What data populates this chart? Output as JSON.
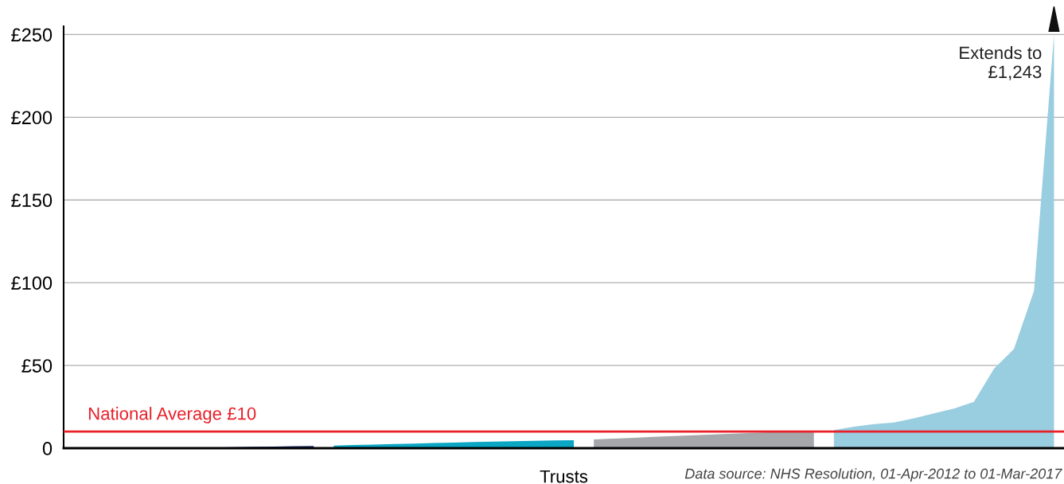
{
  "chart_data": {
    "type": "area",
    "xlabel": "Trusts",
    "categories": [
      null,
      null,
      null,
      null,
      null,
      null,
      null,
      null,
      null,
      null,
      null,
      null,
      null,
      null,
      null,
      null,
      null,
      null,
      null,
      null,
      null,
      null,
      null,
      null,
      null,
      null,
      null,
      null,
      null,
      null,
      null,
      null,
      null,
      null,
      null,
      null,
      null,
      null,
      null,
      null,
      null,
      null,
      null,
      null,
      null,
      null,
      null,
      null,
      null,
      null
    ],
    "series": [
      {
        "color": "#1a2a6c",
        "values": [
          null,
          null,
          null,
          null,
          null,
          0.1,
          0.2,
          0.4,
          0.6,
          0.8,
          1.0,
          1.2,
          1.3,
          null,
          null,
          null,
          null,
          null,
          null,
          null,
          null,
          null,
          null,
          null,
          null,
          null,
          null,
          null,
          null,
          null,
          null,
          null,
          null,
          null,
          null,
          null,
          null,
          null,
          null,
          null,
          null,
          null,
          null,
          null,
          null,
          null,
          null,
          null,
          null,
          null
        ]
      },
      {
        "color": "#0aa6c4",
        "values": [
          null,
          null,
          null,
          null,
          null,
          null,
          null,
          null,
          null,
          null,
          null,
          null,
          null,
          1.6,
          1.9,
          2.2,
          2.5,
          2.8,
          3.1,
          3.4,
          3.7,
          4.0,
          4.2,
          4.5,
          4.7,
          4.8,
          null,
          null,
          null,
          null,
          null,
          null,
          null,
          null,
          null,
          null,
          null,
          null,
          null,
          null,
          null,
          null,
          null,
          null,
          null,
          null,
          null,
          null,
          null,
          null
        ]
      },
      {
        "color": "#a6a7ab",
        "values": [
          null,
          null,
          null,
          null,
          null,
          null,
          null,
          null,
          null,
          null,
          null,
          null,
          null,
          null,
          null,
          null,
          null,
          null,
          null,
          null,
          null,
          null,
          null,
          null,
          null,
          null,
          5.3,
          5.8,
          6.3,
          6.8,
          7.3,
          7.8,
          8.3,
          8.8,
          9.3,
          9.8,
          10.2,
          10.6,
          null,
          null,
          null,
          null,
          null,
          null,
          null,
          null,
          null,
          null,
          null,
          null
        ]
      },
      {
        "color": "#99cde0",
        "values": [
          null,
          null,
          null,
          null,
          null,
          null,
          null,
          null,
          null,
          null,
          null,
          null,
          null,
          null,
          null,
          null,
          null,
          null,
          null,
          null,
          null,
          null,
          null,
          null,
          null,
          null,
          null,
          null,
          null,
          null,
          null,
          null,
          null,
          null,
          null,
          null,
          null,
          null,
          11,
          13,
          14.5,
          15.5,
          18,
          21,
          24,
          28,
          48,
          60,
          95,
          250
        ]
      }
    ],
    "ylim": [
      0,
      255
    ],
    "yticks": [
      {
        "value": 0,
        "label": "0"
      },
      {
        "value": 50,
        "label": "£50"
      },
      {
        "value": 100,
        "label": "£100"
      },
      {
        "value": 150,
        "label": "£150"
      },
      {
        "value": 200,
        "label": "£200"
      },
      {
        "value": 250,
        "label": "£250"
      }
    ],
    "grid": "y",
    "ref_lines": [
      {
        "axis": "y",
        "value": 10,
        "label": "National Average £10",
        "color": "#e8202a"
      }
    ],
    "annotations": [
      "Extends to\n£1,243",
      "Data source: NHS Resolution, 01-Apr-2012 to 01-Mar-2017"
    ]
  }
}
